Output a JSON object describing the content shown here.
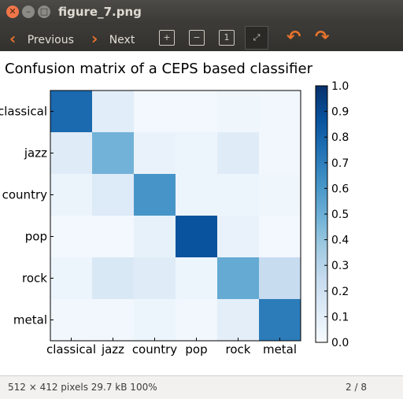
{
  "window": {
    "title": "figure_7.png",
    "close_glyph": "✕",
    "min_glyph": "–",
    "max_glyph": "□"
  },
  "toolbar": {
    "previous_label": "Previous",
    "next_label": "Next",
    "tools": [
      "zoom-in-icon",
      "zoom-out-icon",
      "fit-page-icon",
      "best-fit-icon"
    ],
    "zoom_in_glyph": "+",
    "zoom_out_glyph": "−",
    "fit_glyph": "1",
    "best_fit_glyph": "⤢",
    "rotate_left_glyph": "↶",
    "rotate_right_glyph": "↷"
  },
  "status": {
    "info": "512 × 412 pixels  29.7 kB  100%",
    "page": "2 / 8"
  },
  "chart_data": {
    "type": "heatmap",
    "title": "Confusion matrix of a CEPS based classifier",
    "row_labels": [
      "classical",
      "jazz",
      "country",
      "pop",
      "rock",
      "metal"
    ],
    "col_labels": [
      "classical",
      "jazz",
      "country",
      "pop",
      "rock",
      "metal"
    ],
    "values": [
      [
        0.78,
        0.11,
        0.02,
        0.02,
        0.04,
        0.03
      ],
      [
        0.12,
        0.48,
        0.07,
        0.05,
        0.12,
        0.03
      ],
      [
        0.06,
        0.13,
        0.61,
        0.05,
        0.05,
        0.04
      ],
      [
        0.02,
        0.02,
        0.08,
        0.87,
        0.07,
        0.02
      ],
      [
        0.05,
        0.15,
        0.12,
        0.05,
        0.52,
        0.24
      ],
      [
        0.03,
        0.03,
        0.05,
        0.03,
        0.1,
        0.71
      ]
    ],
    "colorbar": {
      "min": 0.0,
      "max": 1.0,
      "ticks": [
        "0.0",
        "0.1",
        "0.2",
        "0.3",
        "0.4",
        "0.5",
        "0.6",
        "0.7",
        "0.8",
        "0.9",
        "1.0"
      ]
    },
    "colormap": "Blues"
  }
}
